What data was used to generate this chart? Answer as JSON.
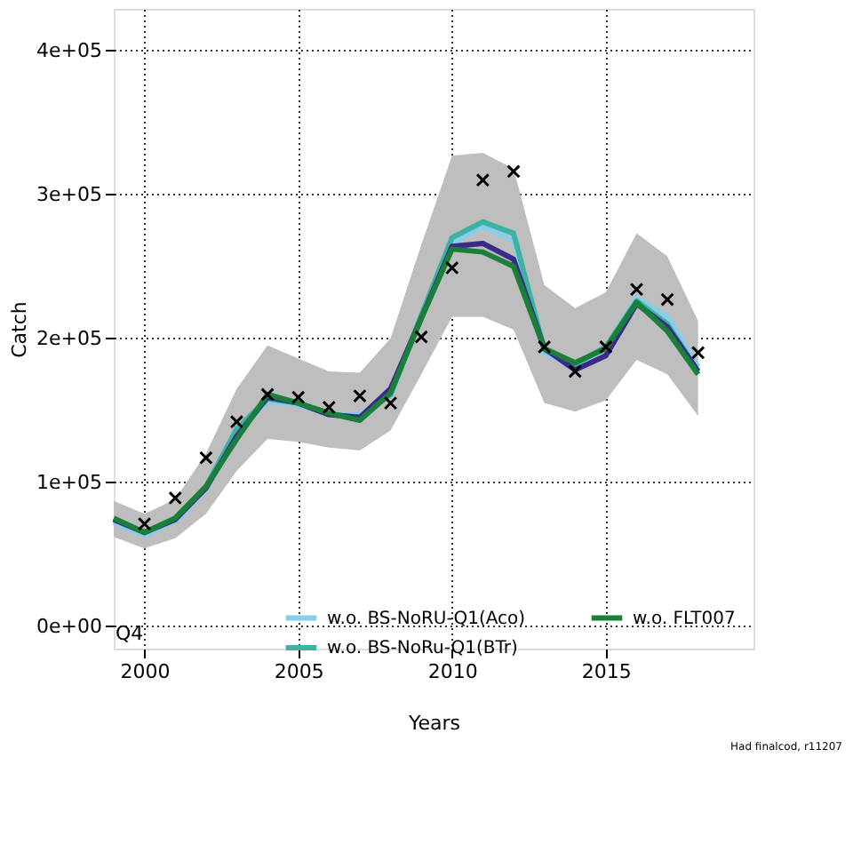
{
  "chart_data": {
    "type": "line",
    "xlabel": "Years",
    "ylabel": "Catch",
    "x": [
      1999,
      2000,
      2001,
      2002,
      2003,
      2004,
      2005,
      2006,
      2007,
      2008,
      2009,
      2010,
      2011,
      2012,
      2013,
      2014,
      2015,
      2016,
      2017,
      2018
    ],
    "series": [
      {
        "name": "w.o. BS-NoRU-Q1(Aco)",
        "color": "#87ceeb",
        "values": [
          72000,
          63000,
          73000,
          95000,
          135000,
          156000,
          154000,
          147000,
          147000,
          160000,
          215000,
          266000,
          278000,
          268000,
          190000,
          180000,
          193000,
          228000,
          215000,
          180000
        ]
      },
      {
        "name": "w.o. BS-NoRu-Q1(BTr)",
        "color": "#3cb3a0",
        "values": [
          74000,
          65000,
          75000,
          97000,
          137000,
          158000,
          155000,
          147000,
          145000,
          161000,
          216000,
          270000,
          281000,
          273000,
          192000,
          182000,
          194000,
          226000,
          210000,
          177000
        ]
      },
      {
        "color": "#3b2a8a",
        "values": [
          74000,
          65000,
          74000,
          96000,
          132000,
          159000,
          155000,
          147000,
          145000,
          165000,
          214000,
          264000,
          266000,
          255000,
          193000,
          178000,
          188000,
          224000,
          208000,
          177000
        ],
        "lower": [
          62000,
          54000,
          61000,
          78000,
          108000,
          130000,
          128000,
          124000,
          122000,
          136000,
          175000,
          215000,
          215000,
          206000,
          155000,
          149000,
          157000,
          185000,
          175000,
          146000
        ],
        "upper": [
          87000,
          78000,
          88000,
          120000,
          165000,
          195000,
          186000,
          177000,
          176000,
          200000,
          265000,
          327000,
          329000,
          318000,
          237000,
          221000,
          232000,
          273000,
          257000,
          212000
        ]
      },
      {
        "name": "w.o. FLT007",
        "color": "#1a7f3a",
        "values": [
          75000,
          65000,
          75000,
          97000,
          130000,
          161000,
          155000,
          148000,
          143000,
          162000,
          214000,
          262000,
          260000,
          250000,
          193000,
          183000,
          193000,
          225000,
          205000,
          175000
        ]
      },
      {
        "type": "scatter",
        "marker": "cross",
        "color": "#000000",
        "x": [
          2000,
          2001,
          2002,
          2003,
          2004,
          2005,
          2006,
          2007,
          2008,
          2009,
          2010,
          2011,
          2012,
          2013,
          2014,
          2015,
          2016,
          2017,
          2018
        ],
        "values": [
          71000,
          89000,
          117000,
          142000,
          161000,
          159000,
          152000,
          160000,
          155000,
          201000,
          249000,
          310000,
          316000,
          194000,
          177000,
          194000,
          234000,
          227000,
          190000
        ]
      }
    ],
    "xlim": [
      1999,
      2019.8
    ],
    "xticks": [
      2000,
      2005,
      2010,
      2015
    ],
    "ylim": [
      -15700,
      429000
    ],
    "yticks": [
      {
        "value": 0,
        "label": "0e+00"
      },
      {
        "value": 100000,
        "label": "1e+05"
      },
      {
        "value": 200000,
        "label": "2e+05"
      },
      {
        "value": 300000,
        "label": "3e+05"
      },
      {
        "value": 400000,
        "label": "4e+05"
      }
    ],
    "grid": true,
    "line_style": "solid",
    "marker": "none",
    "legend": "bottom",
    "annotations": [
      "Q4",
      "Had finalcod, r11207"
    ]
  }
}
